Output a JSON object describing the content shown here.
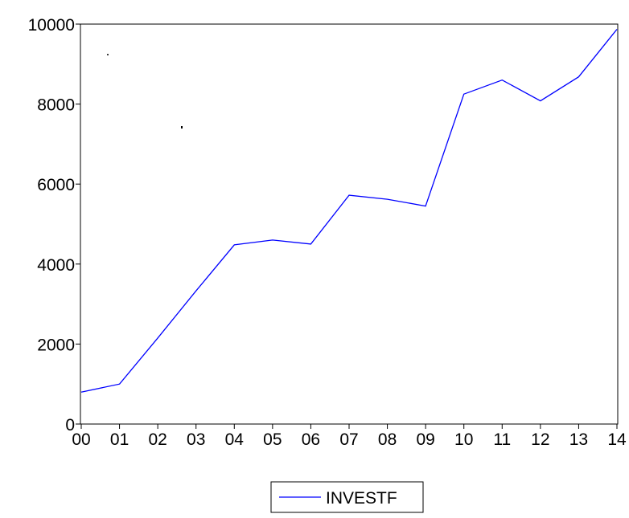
{
  "chart_data": {
    "type": "line",
    "title": "",
    "xlabel": "",
    "ylabel": "",
    "categories": [
      "00",
      "01",
      "02",
      "03",
      "04",
      "05",
      "06",
      "07",
      "08",
      "09",
      "10",
      "11",
      "12",
      "13",
      "14"
    ],
    "series": [
      {
        "name": "INVESTF",
        "color": "#0000ff",
        "values": [
          800,
          1000,
          2150,
          3330,
          4480,
          4600,
          4500,
          5720,
          5620,
          5450,
          8250,
          8600,
          8080,
          8680,
          9870
        ]
      }
    ],
    "ylim": [
      0,
      10000
    ],
    "yticks": [
      "0",
      "2000",
      "4000",
      "6000",
      "8000",
      "10000"
    ],
    "grid": false,
    "legend_position": "bottom-center"
  }
}
